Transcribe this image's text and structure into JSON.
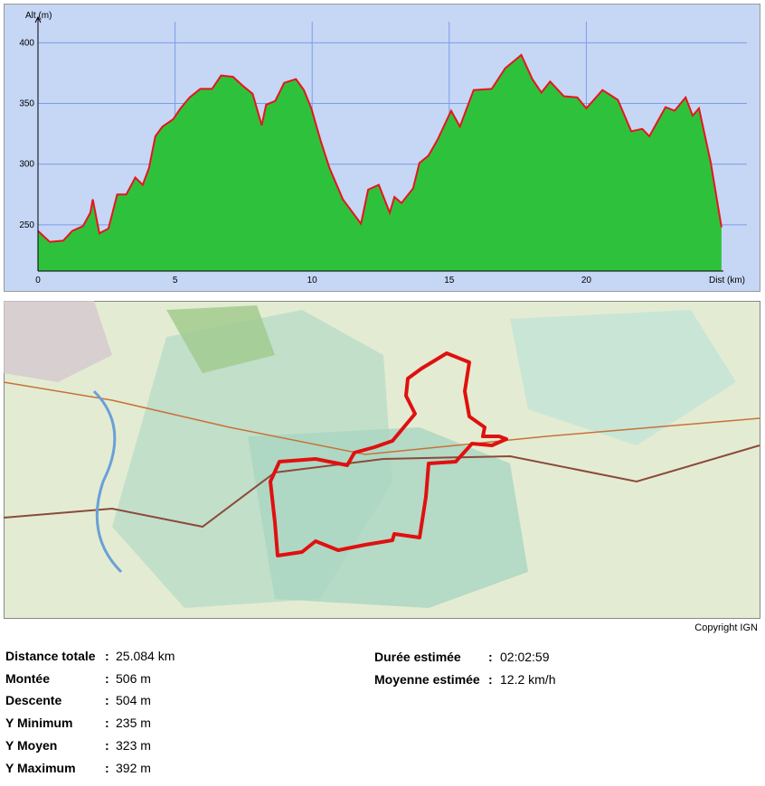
{
  "chart_data": {
    "type": "area",
    "x_label": "Dist (km)",
    "y_label": "Alt (m)",
    "xlim": [
      0,
      25
    ],
    "ylim": [
      212,
      430
    ],
    "xticks": [
      0,
      5,
      10,
      15,
      20
    ],
    "yticks": [
      250,
      300,
      350,
      400
    ],
    "grid": true,
    "x": [
      0,
      0.43,
      0.92,
      1.25,
      1.64,
      1.91,
      2.0,
      2.24,
      2.57,
      2.89,
      3.22,
      3.55,
      3.82,
      4.05,
      4.28,
      4.54,
      4.93,
      5.2,
      5.53,
      5.92,
      6.35,
      6.68,
      7.11,
      7.5,
      7.83,
      8.16,
      8.32,
      8.65,
      8.98,
      9.41,
      9.7,
      9.97,
      10.3,
      10.63,
      11.12,
      11.78,
      12.04,
      12.43,
      12.83,
      13.0,
      13.26,
      13.68,
      13.91,
      14.24,
      14.57,
      15.07,
      15.39,
      15.89,
      16.55,
      17.04,
      17.63,
      18.03,
      18.36,
      18.68,
      19.18,
      19.67,
      20.0,
      20.59,
      21.15,
      21.64,
      22.04,
      22.3,
      22.89,
      23.22,
      23.62,
      23.88,
      24.11,
      24.54,
      24.93
    ],
    "series": [
      {
        "color": "#e8141e",
        "fill": "#2ec23c",
        "values": [
          245,
          236,
          237,
          245,
          249,
          260,
          271,
          243,
          247,
          275,
          275,
          289,
          283,
          297,
          323,
          331,
          337,
          346,
          355,
          362,
          362,
          373,
          372,
          364,
          358,
          332,
          349,
          352,
          367,
          370,
          361,
          346,
          320,
          297,
          271,
          251,
          279,
          283,
          260,
          273,
          268,
          280,
          301,
          307,
          320,
          344,
          331,
          361,
          362,
          379,
          390,
          370,
          359,
          368,
          356,
          355,
          346,
          361,
          353,
          327,
          329,
          323,
          347,
          344,
          355,
          340,
          346,
          301,
          248
        ]
      }
    ]
  },
  "map": {
    "copyright": "Copyright IGN"
  },
  "stats": {
    "separator": ":",
    "left": [
      {
        "label": "Distance totale",
        "value": "25.084 km"
      },
      {
        "label": "Montée",
        "value": "506 m"
      },
      {
        "label": "Descente",
        "value": "504 m"
      },
      {
        "label": "Y Minimum",
        "value": "235 m"
      },
      {
        "label": "Y Moyen",
        "value": "323 m"
      },
      {
        "label": "Y Maximum",
        "value": "392 m"
      }
    ],
    "right": [
      {
        "label": "Durée estimée",
        "value": "02:02:59"
      },
      {
        "label": "Moyenne estimée",
        "value": "12.2 km/h"
      }
    ]
  }
}
